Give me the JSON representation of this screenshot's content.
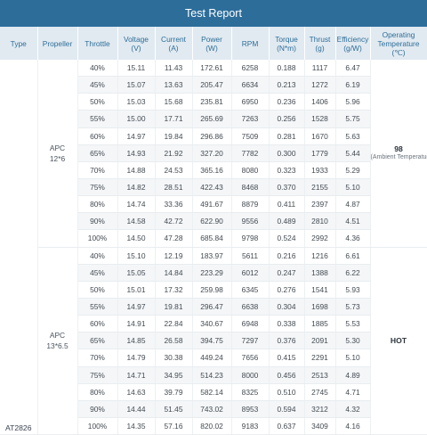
{
  "title": "Test Report",
  "headers": [
    {
      "label": "Type",
      "unit": ""
    },
    {
      "label": "Propeller",
      "unit": ""
    },
    {
      "label": "Throttle",
      "unit": ""
    },
    {
      "label": "Voltage",
      "unit": "(V)"
    },
    {
      "label": "Current",
      "unit": "(A)"
    },
    {
      "label": "Power",
      "unit": "(W)"
    },
    {
      "label": "RPM",
      "unit": ""
    },
    {
      "label": "Torque",
      "unit": "(N*m)"
    },
    {
      "label": "Thrust",
      "unit": "(g)"
    },
    {
      "label": "Efficiency",
      "unit": "(g/W)"
    },
    {
      "label": "Operating Temperature",
      "unit": "(℃)"
    }
  ],
  "type_label": "AT2826",
  "groups": [
    {
      "propeller_name": "APC",
      "propeller_size": "12*6",
      "temperature": "98",
      "temperature_note": "(Ambient Temperature:/)",
      "rows": [
        [
          "40%",
          "15.11",
          "11.43",
          "172.61",
          "6258",
          "0.188",
          "1117",
          "6.47"
        ],
        [
          "45%",
          "15.07",
          "13.63",
          "205.47",
          "6634",
          "0.213",
          "1272",
          "6.19"
        ],
        [
          "50%",
          "15.03",
          "15.68",
          "235.81",
          "6950",
          "0.236",
          "1406",
          "5.96"
        ],
        [
          "55%",
          "15.00",
          "17.71",
          "265.69",
          "7263",
          "0.256",
          "1528",
          "5.75"
        ],
        [
          "60%",
          "14.97",
          "19.84",
          "296.86",
          "7509",
          "0.281",
          "1670",
          "5.63"
        ],
        [
          "65%",
          "14.93",
          "21.92",
          "327.20",
          "7782",
          "0.300",
          "1779",
          "5.44"
        ],
        [
          "70%",
          "14.88",
          "24.53",
          "365.16",
          "8080",
          "0.323",
          "1933",
          "5.29"
        ],
        [
          "75%",
          "14.82",
          "28.51",
          "422.43",
          "8468",
          "0.370",
          "2155",
          "5.10"
        ],
        [
          "80%",
          "14.74",
          "33.36",
          "491.67",
          "8879",
          "0.411",
          "2397",
          "4.87"
        ],
        [
          "90%",
          "14.58",
          "42.72",
          "622.90",
          "9556",
          "0.489",
          "2810",
          "4.51"
        ],
        [
          "100%",
          "14.50",
          "47.28",
          "685.84",
          "9798",
          "0.524",
          "2992",
          "4.36"
        ]
      ]
    },
    {
      "propeller_name": "APC",
      "propeller_size": "13*6.5",
      "temperature": "HOT",
      "temperature_note": "",
      "rows": [
        [
          "40%",
          "15.10",
          "12.19",
          "183.97",
          "5611",
          "0.216",
          "1216",
          "6.61"
        ],
        [
          "45%",
          "15.05",
          "14.84",
          "223.29",
          "6012",
          "0.247",
          "1388",
          "6.22"
        ],
        [
          "50%",
          "15.01",
          "17.32",
          "259.98",
          "6345",
          "0.276",
          "1541",
          "5.93"
        ],
        [
          "55%",
          "14.97",
          "19.81",
          "296.47",
          "6638",
          "0.304",
          "1698",
          "5.73"
        ],
        [
          "60%",
          "14.91",
          "22.84",
          "340.67",
          "6948",
          "0.338",
          "1885",
          "5.53"
        ],
        [
          "65%",
          "14.85",
          "26.58",
          "394.75",
          "7297",
          "0.376",
          "2091",
          "5.30"
        ],
        [
          "70%",
          "14.79",
          "30.38",
          "449.24",
          "7656",
          "0.415",
          "2291",
          "5.10"
        ],
        [
          "75%",
          "14.71",
          "34.95",
          "514.23",
          "8000",
          "0.456",
          "2513",
          "4.89"
        ],
        [
          "80%",
          "14.63",
          "39.79",
          "582.14",
          "8325",
          "0.510",
          "2745",
          "4.71"
        ],
        [
          "90%",
          "14.44",
          "51.45",
          "743.02",
          "8953",
          "0.594",
          "3212",
          "4.32"
        ],
        [
          "100%",
          "14.35",
          "57.16",
          "820.02",
          "9183",
          "0.637",
          "3409",
          "4.16"
        ]
      ]
    }
  ]
}
